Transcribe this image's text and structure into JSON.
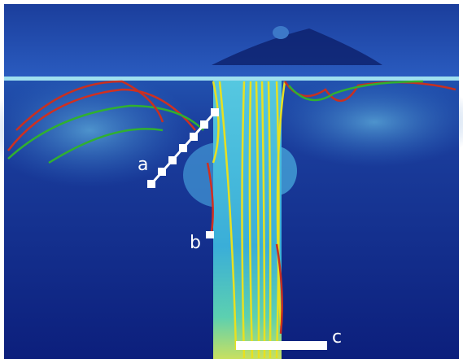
{
  "labels": [
    "a",
    "b",
    "c"
  ]
}
